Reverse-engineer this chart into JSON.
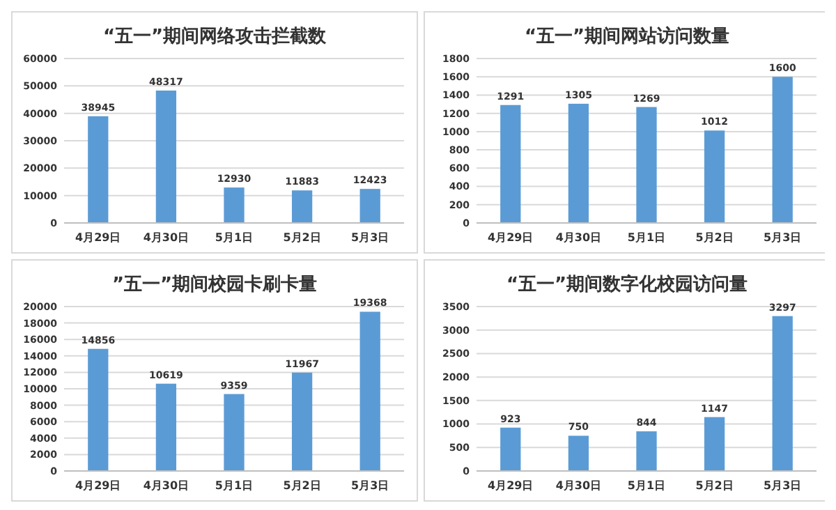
{
  "chart_data": [
    {
      "type": "bar",
      "title": "“五一”期间网络攻击拦截数",
      "categories": [
        "4月29日",
        "4月30日",
        "5月1日",
        "5月2日",
        "5月3日"
      ],
      "values": [
        38945,
        48317,
        12930,
        11883,
        12423
      ],
      "color": "#5b9bd5",
      "ylim": [
        0,
        60000
      ],
      "yticks": [
        0,
        10000,
        20000,
        30000,
        40000,
        50000,
        60000
      ],
      "grid": "y",
      "data_labels": true
    },
    {
      "type": "bar",
      "title": "“五一”期间网站访问数量",
      "categories": [
        "4月29日",
        "4月30日",
        "5月1日",
        "5月2日",
        "5月3日"
      ],
      "values": [
        1291,
        1305,
        1269,
        1012,
        1600
      ],
      "color": "#5b9bd5",
      "ylim": [
        0,
        1800
      ],
      "yticks": [
        0,
        200,
        400,
        600,
        800,
        1000,
        1200,
        1400,
        1600,
        1800
      ],
      "grid": "y",
      "data_labels": true
    },
    {
      "type": "bar",
      "title": "”五一”期间校园卡刷卡量",
      "categories": [
        "4月29日",
        "4月30日",
        "5月1日",
        "5月2日",
        "5月3日"
      ],
      "values": [
        14856,
        10619,
        9359,
        11967,
        19368
      ],
      "color": "#5b9bd5",
      "ylim": [
        0,
        20000
      ],
      "yticks": [
        0,
        2000,
        4000,
        6000,
        8000,
        10000,
        12000,
        14000,
        16000,
        18000,
        20000
      ],
      "grid": "y",
      "data_labels": true
    },
    {
      "type": "bar",
      "title": "“五一”期间数字化校园访问量",
      "categories": [
        "4月29日",
        "4月30日",
        "5月1日",
        "5月2日",
        "5月3日"
      ],
      "values": [
        923,
        750,
        844,
        1147,
        3297
      ],
      "color": "#5b9bd5",
      "ylim": [
        0,
        3500
      ],
      "yticks": [
        0,
        500,
        1000,
        1500,
        2000,
        2500,
        3000,
        3500
      ],
      "grid": "y",
      "data_labels": true
    }
  ]
}
